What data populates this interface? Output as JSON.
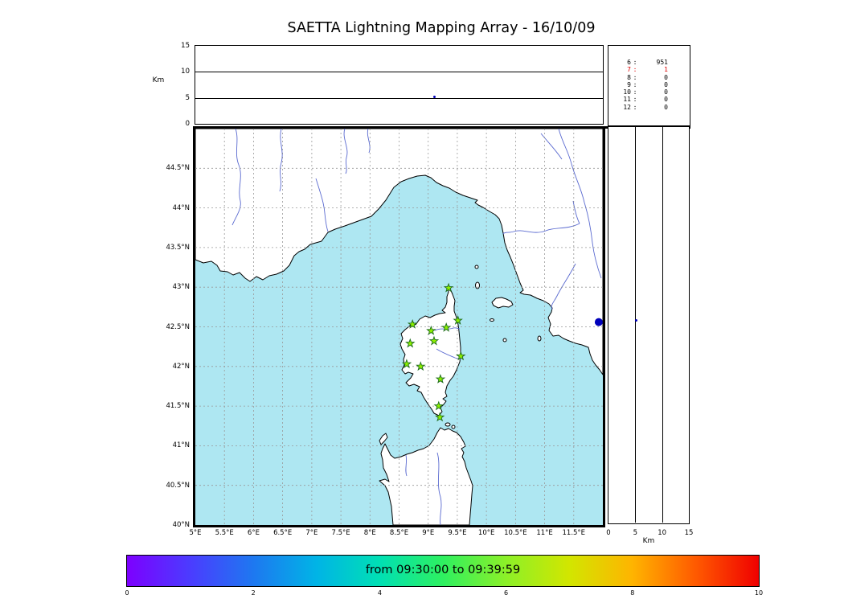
{
  "title": "SAETTA Lightning Mapping Array - 16/10/09",
  "chart_data": {
    "type": "scatter",
    "title": "SAETTA Lightning Mapping Array - 16/10/09",
    "altitude_time_panel": {
      "ylabel": "Km",
      "yticks": [
        15,
        10,
        5,
        0
      ],
      "ylim": [
        0,
        15
      ],
      "gridlines_km": [
        10,
        5
      ],
      "point": {
        "time_frac": 0.586,
        "alt_km": 5.2
      }
    },
    "station_count_panel": {
      "rows": [
        {
          "stations": "6",
          "count": "951",
          "highlight": false
        },
        {
          "stations": "7",
          "count": "1",
          "highlight": true
        },
        {
          "stations": "8",
          "count": "0",
          "highlight": false
        },
        {
          "stations": "9",
          "count": "0",
          "highlight": false
        },
        {
          "stations": "10",
          "count": "0",
          "highlight": false
        },
        {
          "stations": "11",
          "count": "0",
          "highlight": false
        },
        {
          "stations": "12",
          "count": "0",
          "highlight": false
        }
      ],
      "highlight_color": "#dd0000"
    },
    "map_panel": {
      "lon_range": [
        5,
        12
      ],
      "lat_range": [
        40,
        45
      ],
      "lat_ticks": [
        "44.5°N",
        "44°N",
        "43.5°N",
        "43°N",
        "42.5°N",
        "42°N",
        "41.5°N",
        "41°N",
        "40.5°N",
        "40°N"
      ],
      "lon_ticks": [
        "5°E",
        "5.5°E",
        "6°E",
        "6.5°E",
        "7°E",
        "7.5°E",
        "8°E",
        "8.5°E",
        "9°E",
        "9.5°E",
        "10°E",
        "10.5°E",
        "11°E",
        "11.5°E"
      ],
      "sea_color": "#aee7f2",
      "land_color": "#ffffff",
      "river_color": "#5a6ad0",
      "grid_color": "#999999",
      "station_marker_color": "#8cf000",
      "station_marker_edge": "#1e6b1e",
      "stations": [
        {
          "lon": 9.35,
          "lat": 42.99
        },
        {
          "lon": 8.73,
          "lat": 42.53
        },
        {
          "lon": 9.05,
          "lat": 42.45
        },
        {
          "lon": 9.31,
          "lat": 42.49
        },
        {
          "lon": 9.51,
          "lat": 42.58
        },
        {
          "lon": 8.69,
          "lat": 42.29
        },
        {
          "lon": 9.1,
          "lat": 42.32
        },
        {
          "lon": 9.56,
          "lat": 42.13
        },
        {
          "lon": 8.63,
          "lat": 42.03
        },
        {
          "lon": 8.87,
          "lat": 42.0
        },
        {
          "lon": 9.21,
          "lat": 41.84
        },
        {
          "lon": 9.18,
          "lat": 41.5
        },
        {
          "lon": 9.2,
          "lat": 41.36
        }
      ],
      "source": {
        "lon": 11.93,
        "lat": 42.56,
        "color": "#0000bb"
      }
    },
    "altitude_lat_panel": {
      "xlabel": "Km",
      "xticks": [
        0,
        5,
        10,
        15
      ],
      "xlim": [
        0,
        15
      ],
      "gridlines_km": [
        5,
        10
      ],
      "point": {
        "alt_km": 5.2,
        "lat": 42.56
      }
    },
    "colorbar": {
      "label": "from 09:30:00 to 09:39:59",
      "ticks": [
        "0",
        "2",
        "4",
        "6",
        "8",
        "10"
      ],
      "range": [
        0,
        10
      ],
      "colors": [
        "#7d00ff",
        "#4b3cff",
        "#1e78f0",
        "#00b4e6",
        "#00e0b4",
        "#2ef060",
        "#8cf028",
        "#d2e600",
        "#ffb400",
        "#ff5a00",
        "#f00000"
      ]
    }
  }
}
